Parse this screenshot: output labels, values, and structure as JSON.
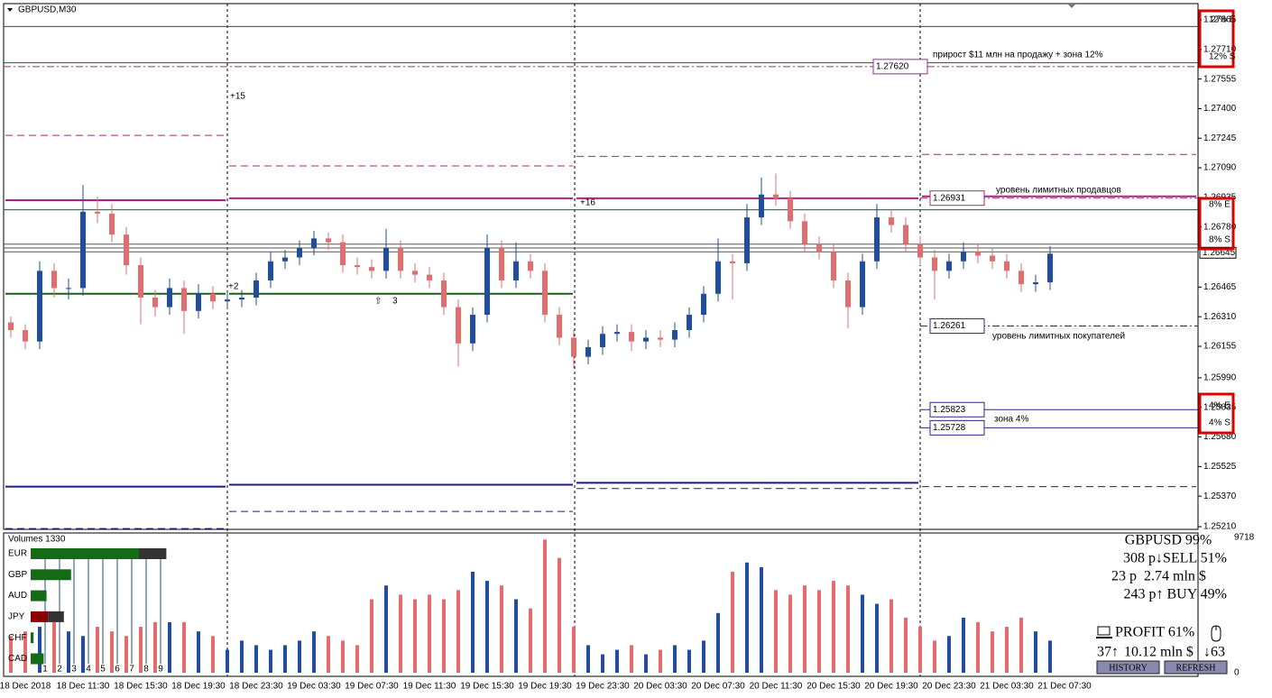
{
  "chart_data": {
    "type": "candlestick",
    "title": "GBPUSD,M30",
    "ylim": [
      1.25196,
      1.2795
    ],
    "yticks": [
      1.27865,
      {
        "value": 1.2771,
        "label": "1.27710"
      },
      1.27555,
      {
        "value": 1.274,
        "label": "1.27400"
      },
      1.27245,
      {
        "value": 1.2709,
        "label": "1.27090"
      },
      1.26935,
      {
        "value": 1.2678,
        "label": "1.26780"
      },
      1.26465,
      {
        "value": 1.2631,
        "label": "1.26310"
      },
      1.26155,
      {
        "value": 1.2599,
        "label": "1.25990"
      },
      1.25835,
      {
        "value": 1.2568,
        "label": "1.25680"
      },
      1.25525,
      {
        "value": 1.2537,
        "label": "1.25370"
      },
      {
        "value": 1.2521,
        "label": "1.25210"
      }
    ],
    "last_price": 1.26645,
    "x_labels": [
      "18 Dec 2018",
      "18 Dec 11:30",
      "18 Dec 15:30",
      "18 Dec 19:30",
      "18 Dec 23:30",
      "19 Dec 03:30",
      "19 Dec 07:30",
      "19 Dec 11:30",
      "19 Dec 15:30",
      "19 Dec 19:30",
      "19 Dec 23:30",
      "20 Dec 03:30",
      "20 Dec 07:30",
      "20 Dec 11:30",
      "20 Dec 15:30",
      "20 Dec 19:30",
      "20 Dec 23:30",
      "21 Dec 03:30",
      "21 Dec 07:30"
    ],
    "ohlc": [
      [
        1.2628,
        1.2631,
        1.262,
        1.2624
      ],
      [
        1.2624,
        1.2627,
        1.2614,
        1.2618
      ],
      [
        1.2618,
        1.266,
        1.2614,
        1.2655
      ],
      [
        1.2655,
        1.2659,
        1.2641,
        1.2646
      ],
      [
        1.2646,
        1.2651,
        1.264,
        1.2646
      ],
      [
        1.2646,
        1.27,
        1.2642,
        1.2686
      ],
      [
        1.2686,
        1.2694,
        1.268,
        1.2685
      ],
      [
        1.2685,
        1.269,
        1.267,
        1.2674
      ],
      [
        1.2674,
        1.2678,
        1.2653,
        1.2658
      ],
      [
        1.2658,
        1.2662,
        1.2627,
        1.2641
      ],
      [
        1.2641,
        1.2645,
        1.2631,
        1.2636
      ],
      [
        1.2636,
        1.2651,
        1.2632,
        1.2646
      ],
      [
        1.2646,
        1.265,
        1.2622,
        1.2634
      ],
      [
        1.2634,
        1.2648,
        1.263,
        1.2643
      ],
      [
        1.2643,
        1.2647,
        1.2635,
        1.2639
      ],
      [
        1.2639,
        1.2644,
        1.2635,
        1.264
      ],
      [
        1.264,
        1.2645,
        1.2636,
        1.2641
      ],
      [
        1.2641,
        1.2654,
        1.2637,
        1.265
      ],
      [
        1.265,
        1.2665,
        1.2646,
        1.266
      ],
      [
        1.266,
        1.2666,
        1.2656,
        1.2662
      ],
      [
        1.2662,
        1.2671,
        1.2658,
        1.2667
      ],
      [
        1.2667,
        1.2676,
        1.2663,
        1.2672
      ],
      [
        1.2672,
        1.2675,
        1.2666,
        1.267
      ],
      [
        1.267,
        1.2674,
        1.2654,
        1.2658
      ],
      [
        1.2658,
        1.2662,
        1.2653,
        1.2657
      ],
      [
        1.2657,
        1.2661,
        1.2651,
        1.2655
      ],
      [
        1.2655,
        1.2677,
        1.2651,
        1.2667
      ],
      [
        1.2667,
        1.2671,
        1.2651,
        1.2655
      ],
      [
        1.2655,
        1.2659,
        1.2649,
        1.2653
      ],
      [
        1.2653,
        1.2657,
        1.2646,
        1.265
      ],
      [
        1.265,
        1.2654,
        1.2632,
        1.2636
      ],
      [
        1.2636,
        1.264,
        1.2605,
        1.2617
      ],
      [
        1.2617,
        1.2636,
        1.2613,
        1.2632
      ],
      [
        1.2632,
        1.2674,
        1.2628,
        1.2667
      ],
      [
        1.2667,
        1.2671,
        1.2646,
        1.265
      ],
      [
        1.265,
        1.267,
        1.2646,
        1.266
      ],
      [
        1.266,
        1.2664,
        1.2651,
        1.2655
      ],
      [
        1.2655,
        1.2659,
        1.2628,
        1.2632
      ],
      [
        1.2632,
        1.2636,
        1.2616,
        1.262
      ],
      [
        1.262,
        1.2624,
        1.2604,
        1.261
      ],
      [
        1.261,
        1.2619,
        1.2606,
        1.2615
      ],
      [
        1.2615,
        1.2626,
        1.2611,
        1.2622
      ],
      [
        1.2622,
        1.2627,
        1.2618,
        1.2623
      ],
      [
        1.2623,
        1.2627,
        1.2613,
        1.2618
      ],
      [
        1.2618,
        1.2624,
        1.2614,
        1.262
      ],
      [
        1.262,
        1.2624,
        1.2615,
        1.2619
      ],
      [
        1.2619,
        1.2628,
        1.2615,
        1.2624
      ],
      [
        1.2624,
        1.2636,
        1.262,
        1.2632
      ],
      [
        1.2632,
        1.2647,
        1.2628,
        1.2643
      ],
      [
        1.2643,
        1.2672,
        1.2639,
        1.266
      ],
      [
        1.266,
        1.2664,
        1.264,
        1.2659
      ],
      [
        1.2659,
        1.269,
        1.2655,
        1.2683
      ],
      [
        1.2683,
        1.2704,
        1.2679,
        1.2695
      ],
      [
        1.2695,
        1.2706,
        1.2689,
        1.2693
      ],
      [
        1.2693,
        1.2697,
        1.2677,
        1.2681
      ],
      [
        1.2681,
        1.2685,
        1.2665,
        1.2669
      ],
      [
        1.2669,
        1.2673,
        1.2661,
        1.2665
      ],
      [
        1.2665,
        1.2669,
        1.2646,
        1.265
      ],
      [
        1.265,
        1.2654,
        1.2625,
        1.2636
      ],
      [
        1.2636,
        1.2664,
        1.2632,
        1.266
      ],
      [
        1.266,
        1.269,
        1.2656,
        1.2683
      ],
      [
        1.2683,
        1.2687,
        1.2675,
        1.2679
      ],
      [
        1.2679,
        1.2683,
        1.2665,
        1.2669
      ],
      [
        1.2669,
        1.2673,
        1.2658,
        1.2662
      ],
      [
        1.2662,
        1.2666,
        1.264,
        1.2655
      ],
      [
        1.2655,
        1.2664,
        1.2651,
        1.266
      ],
      [
        1.266,
        1.267,
        1.2656,
        1.2665
      ],
      [
        1.2665,
        1.2669,
        1.2659,
        1.2663
      ],
      [
        1.2663,
        1.2667,
        1.2656,
        1.266
      ],
      [
        1.266,
        1.2664,
        1.2651,
        1.2655
      ],
      [
        1.2655,
        1.2659,
        1.2644,
        1.2648
      ],
      [
        1.2648,
        1.2653,
        1.2644,
        1.2649
      ],
      [
        1.2649,
        1.2668,
        1.2645,
        1.2664
      ]
    ],
    "up_color": "#1f4e9c",
    "down_color": "#e36c6c",
    "lines": [
      {
        "value": 1.2783,
        "color": "#2f4f3f"
      },
      {
        "value": 1.2764,
        "color": "#2f4f3f"
      },
      {
        "value": 1.2687,
        "color": "#2f4f3f"
      },
      {
        "value": 1.2669,
        "color": "#555555"
      },
      {
        "value": 1.2667,
        "color": "#555555"
      },
      {
        "value": 1.2665,
        "color": "#555555"
      }
    ],
    "levels": [
      {
        "value": 1.2762,
        "label": "1.27620",
        "color": "#9b2c8f"
      },
      {
        "value": 1.26931,
        "label": "1.26931",
        "color": "#9b2c8f"
      },
      {
        "value": 1.26261,
        "label": "1.26261",
        "color": "#2a2a78"
      },
      {
        "value": 1.25823,
        "label": "1.25823",
        "color": "#2a2a78"
      },
      {
        "value": 1.25728,
        "label": "1.25728",
        "color": "#2a2a78"
      }
    ],
    "day_levels": [
      {
        "color": "#b0207f",
        "dash": false,
        "values": [
          1.2692,
          1.2693,
          1.2693,
          1.2694
        ]
      },
      {
        "color": "#b0207f",
        "dash": true,
        "values": [
          1.2726,
          1.271,
          1.2715,
          1.2716
        ]
      },
      {
        "color": "#1d5e1d",
        "dash": false,
        "values": [
          1.2643,
          1.2643,
          null,
          null
        ]
      },
      {
        "color": "#1a1a8c",
        "dash": false,
        "values": [
          1.2542,
          1.2543,
          1.2544,
          null
        ]
      },
      {
        "color": "#1a1a8c",
        "dash": true,
        "values": [
          1.252,
          1.2529,
          1.2541,
          1.2542
        ]
      }
    ],
    "annotations": [
      "прирост $11 млн на продажу + зона 12%",
      "уровень лимитных продавцов",
      "уровень лимитных покупателей",
      "зона 4%"
    ],
    "marks": [
      "+15",
      "+16",
      "+2",
      "⇧",
      "3"
    ],
    "zone_tags": [
      "12% E",
      "12% S",
      "8% E",
      "8% S",
      "4% E",
      "4% S"
    ],
    "volume": {
      "title": "Volumes 1330",
      "ylim": [
        0,
        9718
      ],
      "yticks": [
        0,
        9718
      ],
      "values": [
        2640,
        2970,
        3300,
        3630,
        2970,
        2640,
        3300,
        2970,
        2640,
        3300,
        3630,
        3630,
        3630,
        2970,
        2640,
        1650,
        2310,
        1980,
        1650,
        1980,
        2310,
        2970,
        2640,
        2310,
        1980,
        5280,
        6270,
        5610,
        5280,
        5610,
        5280,
        5940,
        7260,
        6600,
        6270,
        5280,
        4620,
        9570,
        8250,
        3300,
        1980,
        1320,
        1650,
        1980,
        1320,
        1650,
        1980,
        1650,
        2310,
        4290,
        7260,
        7920,
        7590,
        5940,
        5610,
        6270,
        5940,
        6600,
        6270,
        5610,
        4950,
        5280,
        3960,
        3300,
        2310,
        2640,
        3960,
        3630,
        2970,
        3300,
        3960,
        2970,
        2310
      ]
    }
  },
  "strength": {
    "scale": [
      1,
      2,
      3,
      4,
      5,
      6,
      7,
      8,
      9
    ],
    "rows": [
      {
        "name": "EUR",
        "segments": [
          {
            "value": 7.5,
            "color": "#156b15"
          },
          {
            "value": 1.9,
            "color": "#333333"
          }
        ]
      },
      {
        "name": "GBP",
        "segments": [
          {
            "value": 2.8,
            "color": "#156b15"
          }
        ]
      },
      {
        "name": "AUD",
        "segments": [
          {
            "value": 1.1,
            "color": "#156b15"
          }
        ]
      },
      {
        "name": "JPY",
        "segments": [
          {
            "value": 1.2,
            "color": "#8b0000"
          },
          {
            "value": 1.1,
            "color": "#333333"
          }
        ]
      },
      {
        "name": "CHF",
        "segments": [
          {
            "value": 0.2,
            "color": "#156b15"
          }
        ]
      },
      {
        "name": "CAD",
        "segments": [
          {
            "value": 0.9,
            "color": "#156b15"
          }
        ]
      }
    ]
  },
  "panel": {
    "symbol": "GBPUSD 99%",
    "sell": "308 p↓SELL 51%",
    "points": "23 p",
    "amount": "2.74 mln $",
    "buy": "243 p↑ BUY 49%",
    "profit": "PROFIT 61%",
    "count_up": "37↑",
    "total": "10.12 mln $",
    "count_down": "↓63",
    "buttons": [
      "HISTORY",
      "REFRESH"
    ]
  }
}
